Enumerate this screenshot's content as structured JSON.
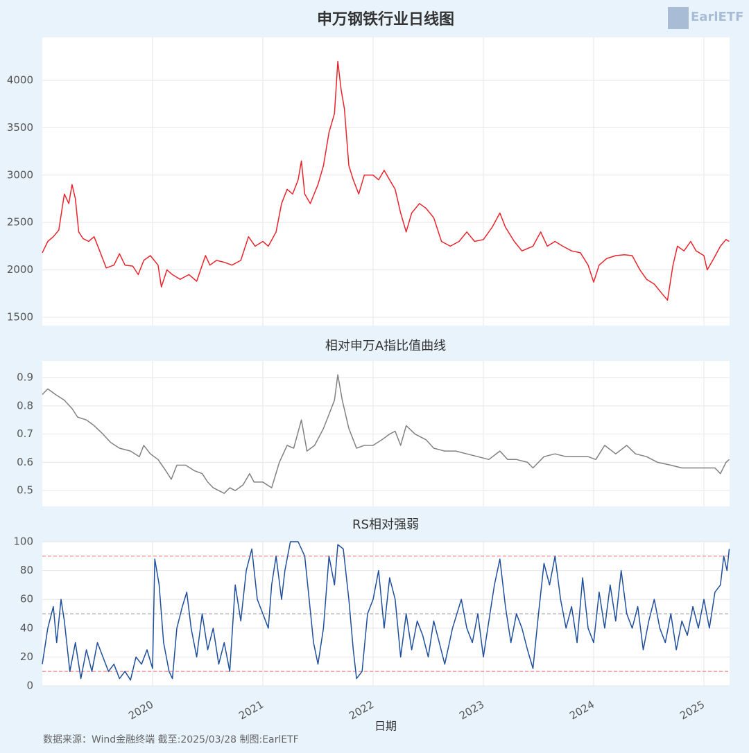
{
  "logo": "EarlETF",
  "source": "数据来源：Wind金融终端 截至:2025/03/28 制图:EarlETF",
  "chart_data": [
    {
      "type": "line",
      "title": "申万钢铁行业日线图",
      "color": "#e8232b",
      "grid": true,
      "xlim": [
        2019.0,
        2025.233
      ],
      "xticks": [
        2020,
        2021,
        2022,
        2023,
        2024,
        2025
      ],
      "ylim": [
        1412,
        4453
      ],
      "yticks": [
        1500,
        2000,
        2500,
        3000,
        3500,
        4000
      ],
      "x": [
        2019.0,
        2019.05,
        2019.1,
        2019.15,
        2019.18,
        2019.2,
        2019.24,
        2019.27,
        2019.3,
        2019.33,
        2019.37,
        2019.42,
        2019.47,
        2019.52,
        2019.58,
        2019.65,
        2019.7,
        2019.75,
        2019.82,
        2019.87,
        2019.92,
        2019.98,
        2020.05,
        2020.08,
        2020.13,
        2020.18,
        2020.25,
        2020.33,
        2020.4,
        2020.48,
        2020.52,
        2020.58,
        2020.65,
        2020.72,
        2020.8,
        2020.87,
        2020.93,
        2021.0,
        2021.05,
        2021.12,
        2021.17,
        2021.22,
        2021.27,
        2021.32,
        2021.35,
        2021.38,
        2021.43,
        2021.5,
        2021.55,
        2021.6,
        2021.65,
        2021.68,
        2021.71,
        2021.74,
        2021.78,
        2021.82,
        2021.87,
        2021.92,
        2022.0,
        2022.05,
        2022.1,
        2022.15,
        2022.2,
        2022.25,
        2022.3,
        2022.35,
        2022.42,
        2022.48,
        2022.55,
        2022.62,
        2022.7,
        2022.78,
        2022.85,
        2022.92,
        2023.0,
        2023.08,
        2023.15,
        2023.2,
        2023.28,
        2023.35,
        2023.45,
        2023.52,
        2023.58,
        2023.65,
        2023.72,
        2023.8,
        2023.88,
        2023.95,
        2024.0,
        2024.05,
        2024.12,
        2024.2,
        2024.28,
        2024.35,
        2024.42,
        2024.48,
        2024.55,
        2024.62,
        2024.67,
        2024.72,
        2024.76,
        2024.82,
        2024.88,
        2024.93,
        2025.0,
        2025.03,
        2025.08,
        2025.15,
        2025.2,
        2025.23
      ],
      "values": [
        2180,
        2300,
        2350,
        2420,
        2650,
        2800,
        2700,
        2900,
        2750,
        2400,
        2330,
        2300,
        2350,
        2200,
        2020,
        2050,
        2170,
        2050,
        2040,
        1950,
        2100,
        2150,
        2050,
        1820,
        2000,
        1950,
        1900,
        1950,
        1880,
        2150,
        2050,
        2100,
        2080,
        2050,
        2100,
        2350,
        2250,
        2300,
        2250,
        2400,
        2700,
        2850,
        2800,
        2950,
        3150,
        2800,
        2700,
        2900,
        3100,
        3450,
        3650,
        4200,
        3900,
        3700,
        3100,
        2950,
        2800,
        3000,
        3000,
        2950,
        3050,
        2950,
        2850,
        2600,
        2400,
        2600,
        2700,
        2650,
        2550,
        2300,
        2250,
        2300,
        2400,
        2300,
        2320,
        2450,
        2600,
        2450,
        2300,
        2200,
        2250,
        2400,
        2250,
        2300,
        2250,
        2200,
        2180,
        2050,
        1870,
        2050,
        2120,
        2150,
        2160,
        2150,
        2000,
        1900,
        1850,
        1750,
        1680,
        2050,
        2250,
        2200,
        2300,
        2200,
        2150,
        2000,
        2100,
        2250,
        2320,
        2300
      ]
    },
    {
      "type": "line",
      "title": "相对申万A指比值曲线",
      "color": "#808080",
      "grid": true,
      "xlim": [
        2019.0,
        2025.233
      ],
      "xticks": [
        2020,
        2021,
        2022,
        2023,
        2024,
        2025
      ],
      "ylim": [
        0.444,
        0.959
      ],
      "yticks": [
        0.5,
        0.6,
        0.7,
        0.8,
        0.9
      ],
      "x": [
        2019.0,
        2019.05,
        2019.12,
        2019.2,
        2019.27,
        2019.32,
        2019.4,
        2019.47,
        2019.55,
        2019.62,
        2019.7,
        2019.8,
        2019.88,
        2019.92,
        2019.98,
        2020.05,
        2020.12,
        2020.17,
        2020.22,
        2020.3,
        2020.38,
        2020.45,
        2020.5,
        2020.55,
        2020.6,
        2020.65,
        2020.7,
        2020.75,
        2020.82,
        2020.88,
        2020.92,
        2021.0,
        2021.08,
        2021.15,
        2021.22,
        2021.28,
        2021.35,
        2021.4,
        2021.47,
        2021.55,
        2021.6,
        2021.65,
        2021.68,
        2021.72,
        2021.78,
        2021.85,
        2021.92,
        2022.0,
        2022.08,
        2022.15,
        2022.2,
        2022.25,
        2022.3,
        2022.38,
        2022.48,
        2022.55,
        2022.65,
        2022.75,
        2022.85,
        2022.95,
        2023.05,
        2023.15,
        2023.22,
        2023.3,
        2023.4,
        2023.45,
        2023.55,
        2023.65,
        2023.75,
        2023.85,
        2023.95,
        2024.02,
        2024.1,
        2024.2,
        2024.3,
        2024.38,
        2024.48,
        2024.58,
        2024.7,
        2024.8,
        2024.9,
        2025.0,
        2025.1,
        2025.15,
        2025.2,
        2025.23
      ],
      "values": [
        0.84,
        0.86,
        0.84,
        0.82,
        0.79,
        0.76,
        0.75,
        0.73,
        0.7,
        0.67,
        0.65,
        0.64,
        0.62,
        0.66,
        0.63,
        0.61,
        0.57,
        0.54,
        0.59,
        0.59,
        0.57,
        0.56,
        0.53,
        0.51,
        0.5,
        0.49,
        0.51,
        0.5,
        0.52,
        0.56,
        0.53,
        0.53,
        0.51,
        0.6,
        0.66,
        0.65,
        0.75,
        0.64,
        0.66,
        0.72,
        0.77,
        0.82,
        0.91,
        0.82,
        0.72,
        0.65,
        0.66,
        0.66,
        0.68,
        0.7,
        0.71,
        0.66,
        0.73,
        0.7,
        0.68,
        0.65,
        0.64,
        0.64,
        0.63,
        0.62,
        0.61,
        0.64,
        0.61,
        0.61,
        0.6,
        0.58,
        0.62,
        0.63,
        0.62,
        0.62,
        0.62,
        0.61,
        0.66,
        0.63,
        0.66,
        0.63,
        0.62,
        0.6,
        0.59,
        0.58,
        0.58,
        0.58,
        0.58,
        0.56,
        0.6,
        0.61
      ]
    },
    {
      "type": "line",
      "title": "RS相对强弱",
      "xlabel": "日期",
      "color": "#1f4e9c",
      "grid": true,
      "xlim": [
        2019.0,
        2025.233
      ],
      "xticks": [
        2020,
        2021,
        2022,
        2023,
        2024,
        2025
      ],
      "ylim": [
        0,
        100
      ],
      "yticks": [
        0,
        20,
        40,
        60,
        80,
        100
      ],
      "hlines": [
        {
          "value": 90,
          "color": "#f08080"
        },
        {
          "value": 50,
          "color": "#b0b0b0"
        },
        {
          "value": 10,
          "color": "#f08080"
        }
      ],
      "x": [
        2019.0,
        2019.05,
        2019.1,
        2019.13,
        2019.17,
        2019.2,
        2019.25,
        2019.3,
        2019.35,
        2019.4,
        2019.45,
        2019.5,
        2019.55,
        2019.6,
        2019.65,
        2019.7,
        2019.75,
        2019.8,
        2019.85,
        2019.9,
        2019.95,
        2020.0,
        2020.02,
        2020.06,
        2020.1,
        2020.15,
        2020.18,
        2020.22,
        2020.27,
        2020.31,
        2020.35,
        2020.4,
        2020.45,
        2020.5,
        2020.55,
        2020.6,
        2020.65,
        2020.7,
        2020.75,
        2020.8,
        2020.85,
        2020.9,
        2020.95,
        2021.0,
        2021.05,
        2021.08,
        2021.12,
        2021.17,
        2021.2,
        2021.25,
        2021.32,
        2021.38,
        2021.42,
        2021.46,
        2021.5,
        2021.55,
        2021.6,
        2021.65,
        2021.68,
        2021.73,
        2021.78,
        2021.82,
        2021.85,
        2021.9,
        2021.95,
        2022.0,
        2022.05,
        2022.1,
        2022.15,
        2022.2,
        2022.25,
        2022.3,
        2022.35,
        2022.4,
        2022.45,
        2022.5,
        2022.55,
        2022.6,
        2022.65,
        2022.72,
        2022.8,
        2022.85,
        2022.9,
        2022.95,
        2023.0,
        2023.05,
        2023.1,
        2023.15,
        2023.2,
        2023.25,
        2023.3,
        2023.35,
        2023.4,
        2023.45,
        2023.5,
        2023.55,
        2023.6,
        2023.65,
        2023.7,
        2023.75,
        2023.8,
        2023.85,
        2023.9,
        2023.95,
        2024.0,
        2024.05,
        2024.1,
        2024.15,
        2024.2,
        2024.25,
        2024.3,
        2024.35,
        2024.4,
        2024.45,
        2024.5,
        2024.55,
        2024.6,
        2024.65,
        2024.7,
        2024.75,
        2024.8,
        2024.85,
        2024.9,
        2024.95,
        2025.0,
        2025.05,
        2025.1,
        2025.15,
        2025.18,
        2025.21,
        2025.23
      ],
      "values": [
        15,
        40,
        55,
        30,
        60,
        45,
        10,
        30,
        5,
        25,
        10,
        30,
        20,
        10,
        15,
        5,
        10,
        4,
        20,
        15,
        25,
        12,
        88,
        70,
        30,
        10,
        5,
        40,
        55,
        65,
        40,
        20,
        50,
        25,
        40,
        15,
        30,
        10,
        70,
        45,
        80,
        95,
        60,
        50,
        40,
        70,
        90,
        60,
        80,
        100,
        100,
        90,
        60,
        30,
        15,
        40,
        90,
        70,
        98,
        95,
        60,
        25,
        5,
        10,
        50,
        60,
        80,
        40,
        75,
        60,
        20,
        50,
        25,
        45,
        35,
        20,
        45,
        30,
        15,
        40,
        60,
        40,
        30,
        50,
        20,
        45,
        70,
        88,
        55,
        30,
        50,
        40,
        25,
        12,
        50,
        85,
        70,
        90,
        60,
        40,
        55,
        30,
        75,
        40,
        30,
        65,
        40,
        70,
        45,
        80,
        50,
        40,
        55,
        25,
        45,
        60,
        40,
        30,
        50,
        25,
        45,
        35,
        55,
        40,
        60,
        40,
        65,
        70,
        90,
        80,
        95
      ]
    }
  ]
}
